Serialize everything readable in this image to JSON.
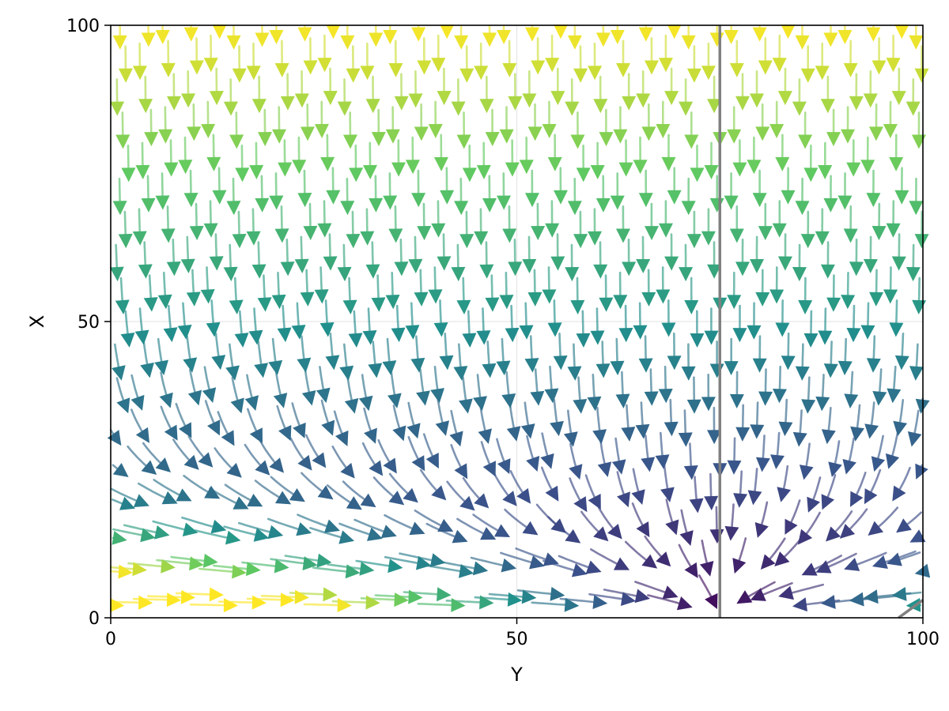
{
  "chart_data": {
    "type": "streamplot",
    "title": "",
    "xlabel": "Y",
    "ylabel": "X",
    "xlim": [
      0,
      100
    ],
    "ylim": [
      0,
      100
    ],
    "xticks": [
      0,
      50,
      100
    ],
    "yticks": [
      0,
      50,
      100
    ],
    "xtick_labels": [
      "0",
      "50",
      "100"
    ],
    "ytick_labels": [
      "0",
      "50",
      "100"
    ],
    "grid": true,
    "colormap": "viridis",
    "colormap_stops": [
      "#440154",
      "#3b528b",
      "#21918c",
      "#5ec962",
      "#fde725"
    ],
    "separatrix": [
      {
        "x1": 75,
        "y1": 0,
        "x2": 75,
        "y2": 100
      },
      {
        "x1": 97,
        "y1": 0,
        "x2": 100,
        "y2": 3
      }
    ],
    "separatrix_color": "#808080",
    "field_note": "flow toward the line Y = 75 along X = 0; vertical descent over most of the domain, fanning leftward arrows for Y > 75 near X = 0"
  }
}
